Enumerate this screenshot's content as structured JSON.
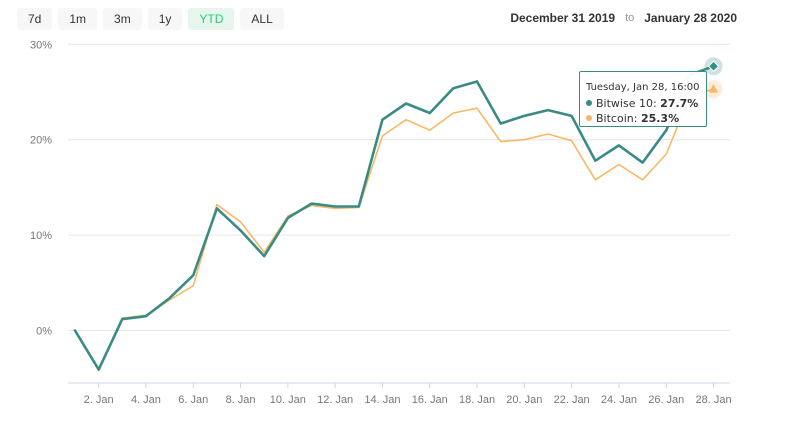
{
  "range_buttons": [
    {
      "label": "7d",
      "active": false
    },
    {
      "label": "1m",
      "active": false
    },
    {
      "label": "3m",
      "active": false
    },
    {
      "label": "1y",
      "active": false
    },
    {
      "label": "YTD",
      "active": true
    },
    {
      "label": "ALL",
      "active": false
    }
  ],
  "date_range": {
    "from": "December 31 2019",
    "to_word": "to",
    "to": "January 28 2020"
  },
  "chart_data": {
    "type": "line",
    "ylim": [
      -5.5,
      31.5
    ],
    "ytick_values": [
      0,
      10,
      20,
      30
    ],
    "ytick_labels": [
      "0%",
      "10%",
      "20%",
      "30%"
    ],
    "x_tick_labels": [
      "2. Jan",
      "4. Jan",
      "6. Jan",
      "8. Jan",
      "10. Jan",
      "12. Jan",
      "14. Jan",
      "16. Jan",
      "18. Jan",
      "20. Jan",
      "22. Jan",
      "24. Jan",
      "26. Jan",
      "28. Jan"
    ],
    "grid": true,
    "series": [
      {
        "name": "Bitcoin",
        "color": "#f9b865",
        "values": [
          0,
          -4.1,
          1.3,
          1.6,
          3.2,
          4.7,
          13.2,
          11.4,
          8.2,
          12.0,
          13.1,
          12.8,
          12.9,
          20.4,
          22.1,
          21.0,
          22.8,
          23.3,
          19.8,
          20.0,
          20.6,
          19.9,
          15.8,
          17.4,
          15.8,
          18.5,
          24.6,
          25.3
        ]
      },
      {
        "name": "Bitwise 10",
        "color": "#3a8b86",
        "values": [
          0,
          -4.1,
          1.2,
          1.5,
          3.4,
          5.8,
          12.8,
          10.5,
          7.8,
          11.8,
          13.3,
          13.0,
          13.0,
          22.1,
          23.8,
          22.8,
          25.4,
          26.1,
          21.7,
          22.5,
          23.1,
          22.5,
          17.8,
          19.4,
          17.6,
          21.0,
          26.8,
          27.7
        ]
      }
    ],
    "tooltip": {
      "title": "Tuesday, Jan 28, 16:00",
      "rows": [
        {
          "label": "Bitwise 10:",
          "value": "27.7%",
          "color": "#3a8b86"
        },
        {
          "label": "Bitcoin:",
          "value": "25.3%",
          "color": "#f9b865"
        }
      ]
    }
  }
}
